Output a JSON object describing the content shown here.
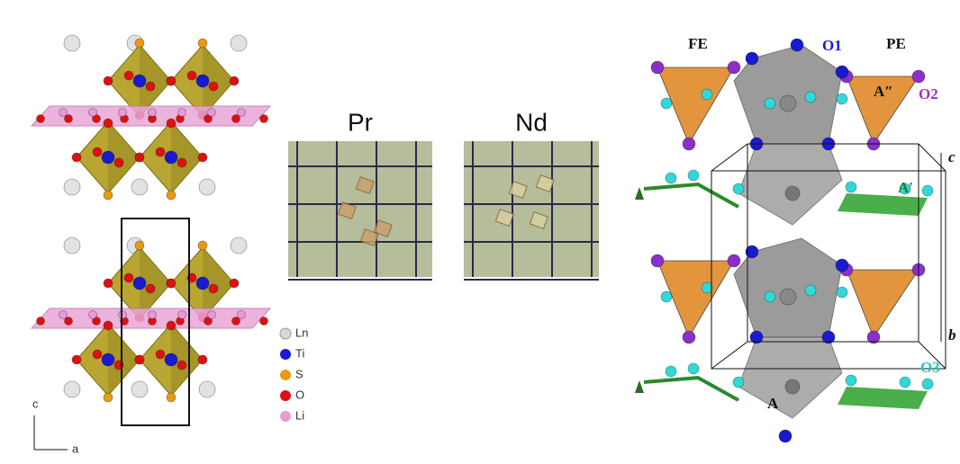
{
  "left_structure": {
    "legend": [
      "Ln",
      "Ti",
      "S",
      "O",
      "Li"
    ],
    "axes": {
      "vertical": "c",
      "horizontal": "a"
    }
  },
  "photos": [
    "Pr",
    "Nd"
  ],
  "right_structure": {
    "top_labels": [
      "FE",
      "O1",
      "PE"
    ],
    "site_labels": [
      "A″",
      "O2",
      "A′",
      "A",
      "O3"
    ],
    "axis_labels": [
      "c",
      "b"
    ]
  }
}
